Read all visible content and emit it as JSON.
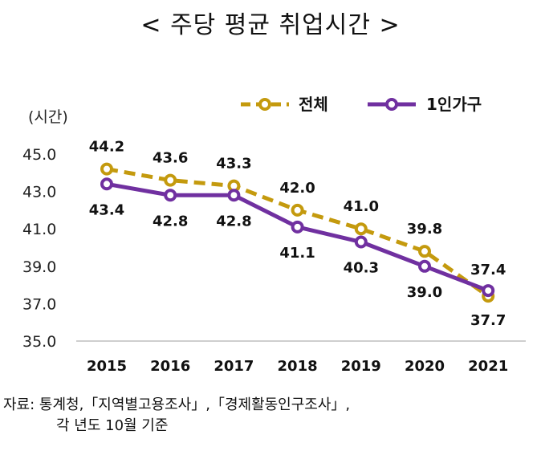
{
  "chart_data": {
    "type": "line",
    "title": "< 주당 평균 취업시간 >",
    "ylabel": "(시간)",
    "xlabel": "",
    "ylim": [
      35.0,
      45.0
    ],
    "yticks": [
      "45.0",
      "43.0",
      "41.0",
      "39.0",
      "37.0",
      "35.0"
    ],
    "ytick_values": [
      45,
      43,
      41,
      39,
      37,
      35
    ],
    "categories": [
      "2015",
      "2016",
      "2017",
      "2018",
      "2019",
      "2020",
      "2021"
    ],
    "series": [
      {
        "name": "전체",
        "color": "#C49A0E",
        "style": "dashed",
        "values": [
          44.2,
          43.6,
          43.3,
          42.0,
          41.0,
          39.8,
          37.4
        ],
        "labels": [
          "44.2",
          "43.6",
          "43.3",
          "42.0",
          "41.0",
          "39.8",
          "37.4"
        ]
      },
      {
        "name": "1인가구",
        "color": "#7030A0",
        "style": "solid",
        "values": [
          43.4,
          42.8,
          42.8,
          41.1,
          40.3,
          39.0,
          37.7
        ],
        "labels": [
          "43.4",
          "42.8",
          "42.8",
          "41.1",
          "40.3",
          "39.0",
          "37.7"
        ]
      }
    ],
    "legend_position": "top-right"
  },
  "source": {
    "line1": "자료: 통계청,「지역별고용조사」,「경제활동인구조사」,",
    "line2": "각 년도 10월 기준"
  }
}
